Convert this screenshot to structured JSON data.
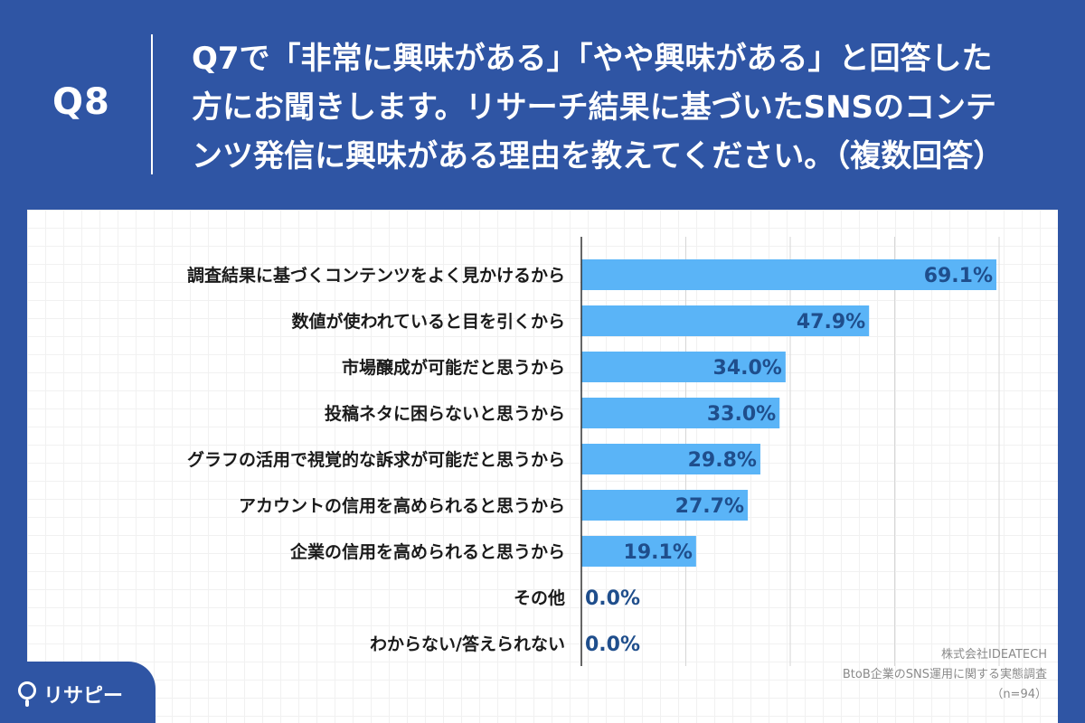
{
  "header": {
    "question_number": "Q8",
    "question_lines": [
      "Q7で「非常に興味がある」「やや興味がある」と回答した",
      "方にお聞きします。リサーチ結果に基づいたSNSのコンテ",
      "ンツ発信に興味がある理由を教えてください。（複数回答）"
    ]
  },
  "chart_data": {
    "type": "bar",
    "orientation": "horizontal",
    "categories": [
      "調査結果に基づくコンテンツをよく見かけるから",
      "数値が使われていると目を引くから",
      "市場醸成が可能だと思うから",
      "投稿ネタに困らないと思うから",
      "グラフの活用で視覚的な訴求が可能だと思うから",
      "アカウントの信用を高められると思うから",
      "企業の信用を高められると思うから",
      "その他",
      "わからない/答えられない"
    ],
    "values": [
      69.1,
      47.9,
      34.0,
      33.0,
      29.8,
      27.7,
      19.1,
      0.0,
      0.0
    ],
    "value_labels": [
      "69.1%",
      "47.9%",
      "34.0%",
      "33.0%",
      "29.8%",
      "27.7%",
      "19.1%",
      "0.0%",
      "0.0%"
    ],
    "xlim": [
      0,
      70
    ],
    "bar_color": "#5ab4f7",
    "label_color": "#1f4e8c",
    "grid": true
  },
  "source": {
    "company": "株式会社IDEATECH",
    "survey": "BtoB企業のSNS運用に関する実態調査",
    "n": "（n=94）"
  },
  "logo": {
    "text": "リサピー",
    "icon": "pin-icon"
  }
}
